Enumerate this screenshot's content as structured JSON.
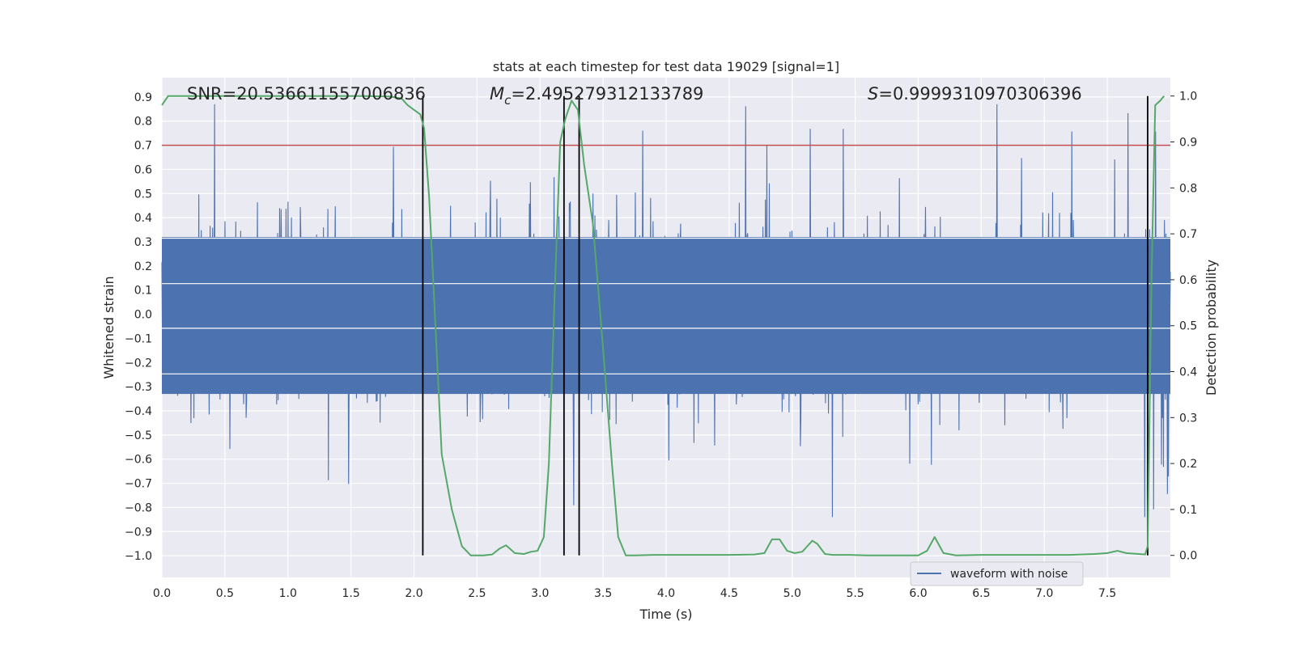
{
  "chart_data": {
    "type": "line",
    "title": "stats at each timestep for test data 19029 [signal=1]",
    "xlabel": "Time (s)",
    "ylabel": "Whitened strain",
    "y2label": "Detection probability",
    "xlim": [
      0.0,
      8.0
    ],
    "ylim": [
      -1.09,
      0.98
    ],
    "y2lim": [
      -0.048,
      1.04
    ],
    "x_ticks": [
      "0.0",
      "0.5",
      "1.0",
      "1.5",
      "2.0",
      "2.5",
      "3.0",
      "3.5",
      "4.0",
      "4.5",
      "5.0",
      "5.5",
      "6.0",
      "6.5",
      "7.0",
      "7.5"
    ],
    "y_ticks": [
      "0.9",
      "0.8",
      "0.7",
      "0.6",
      "0.5",
      "0.4",
      "0.3",
      "0.2",
      "0.1",
      "0.0",
      "−0.1",
      "−0.2",
      "−0.3",
      "−0.4",
      "−0.5",
      "−0.6",
      "−0.7",
      "−0.8",
      "−0.9",
      "−1.0"
    ],
    "y2_ticks": [
      "1.0",
      "0.9",
      "0.8",
      "0.7",
      "0.6",
      "0.5",
      "0.4",
      "0.3",
      "0.2",
      "0.1",
      "0.0"
    ],
    "grid": true,
    "legend": {
      "position": "bottom-right",
      "entries": [
        "waveform with noise"
      ]
    },
    "annotations": {
      "snr": "SNR=20.536611557006836",
      "mc_symbol": "M",
      "mc_sub": "c",
      "mc_value": "=2.495279312133789",
      "s_symbol": "S",
      "s_value": "=0.9999310970306396"
    },
    "threshold": {
      "value": 0.7,
      "color": "#c44e52"
    },
    "vlines": [
      2.07,
      3.19,
      3.31,
      7.82
    ],
    "colors": {
      "waveform": "#4c72b0",
      "probability": "#55a868",
      "vline": "#000000",
      "background": "#eaeaf2"
    },
    "waveform_noise": {
      "samples": 2048,
      "core_envelope": [
        -0.33,
        0.32
      ],
      "peak_range": [
        -0.84,
        0.87
      ],
      "description_note": "dense whitened noise"
    },
    "probability_series": {
      "x": [
        0.0,
        0.05,
        0.1,
        0.2,
        0.4,
        0.6,
        0.8,
        1.0,
        1.2,
        1.4,
        1.6,
        1.8,
        1.9,
        1.95,
        2.0,
        2.05,
        2.08,
        2.12,
        2.17,
        2.22,
        2.3,
        2.38,
        2.45,
        2.5,
        2.55,
        2.62,
        2.68,
        2.73,
        2.8,
        2.87,
        2.93,
        2.98,
        3.03,
        3.07,
        3.12,
        3.16,
        3.2,
        3.25,
        3.3,
        3.35,
        3.42,
        3.5,
        3.57,
        3.62,
        3.68,
        3.75,
        3.9,
        4.2,
        4.5,
        4.7,
        4.78,
        4.84,
        4.9,
        4.96,
        5.02,
        5.08,
        5.12,
        5.16,
        5.2,
        5.26,
        5.32,
        5.45,
        5.6,
        5.8,
        6.0,
        6.07,
        6.13,
        6.2,
        6.3,
        6.5,
        6.8,
        7.0,
        7.2,
        7.4,
        7.5,
        7.58,
        7.65,
        7.75,
        7.8,
        7.82,
        7.85,
        7.88,
        7.92,
        7.95
      ],
      "y": [
        0.98,
        1.0,
        1.0,
        1.0,
        1.0,
        1.0,
        1.0,
        1.0,
        1.0,
        1.0,
        1.0,
        0.999,
        0.995,
        0.98,
        0.97,
        0.96,
        0.93,
        0.78,
        0.5,
        0.22,
        0.1,
        0.02,
        0.0,
        0.0,
        0.0,
        0.002,
        0.015,
        0.022,
        0.005,
        0.003,
        0.008,
        0.01,
        0.04,
        0.2,
        0.6,
        0.9,
        0.95,
        0.99,
        0.97,
        0.85,
        0.72,
        0.45,
        0.2,
        0.04,
        0.0,
        0.0,
        0.001,
        0.001,
        0.001,
        0.002,
        0.005,
        0.035,
        0.035,
        0.01,
        0.005,
        0.008,
        0.02,
        0.032,
        0.025,
        0.003,
        0.001,
        0.001,
        0.0,
        0.0,
        0.0,
        0.01,
        0.04,
        0.005,
        0.0,
        0.001,
        0.001,
        0.001,
        0.001,
        0.003,
        0.005,
        0.01,
        0.005,
        0.003,
        0.002,
        0.02,
        0.6,
        0.98,
        0.99,
        1.0
      ]
    }
  }
}
